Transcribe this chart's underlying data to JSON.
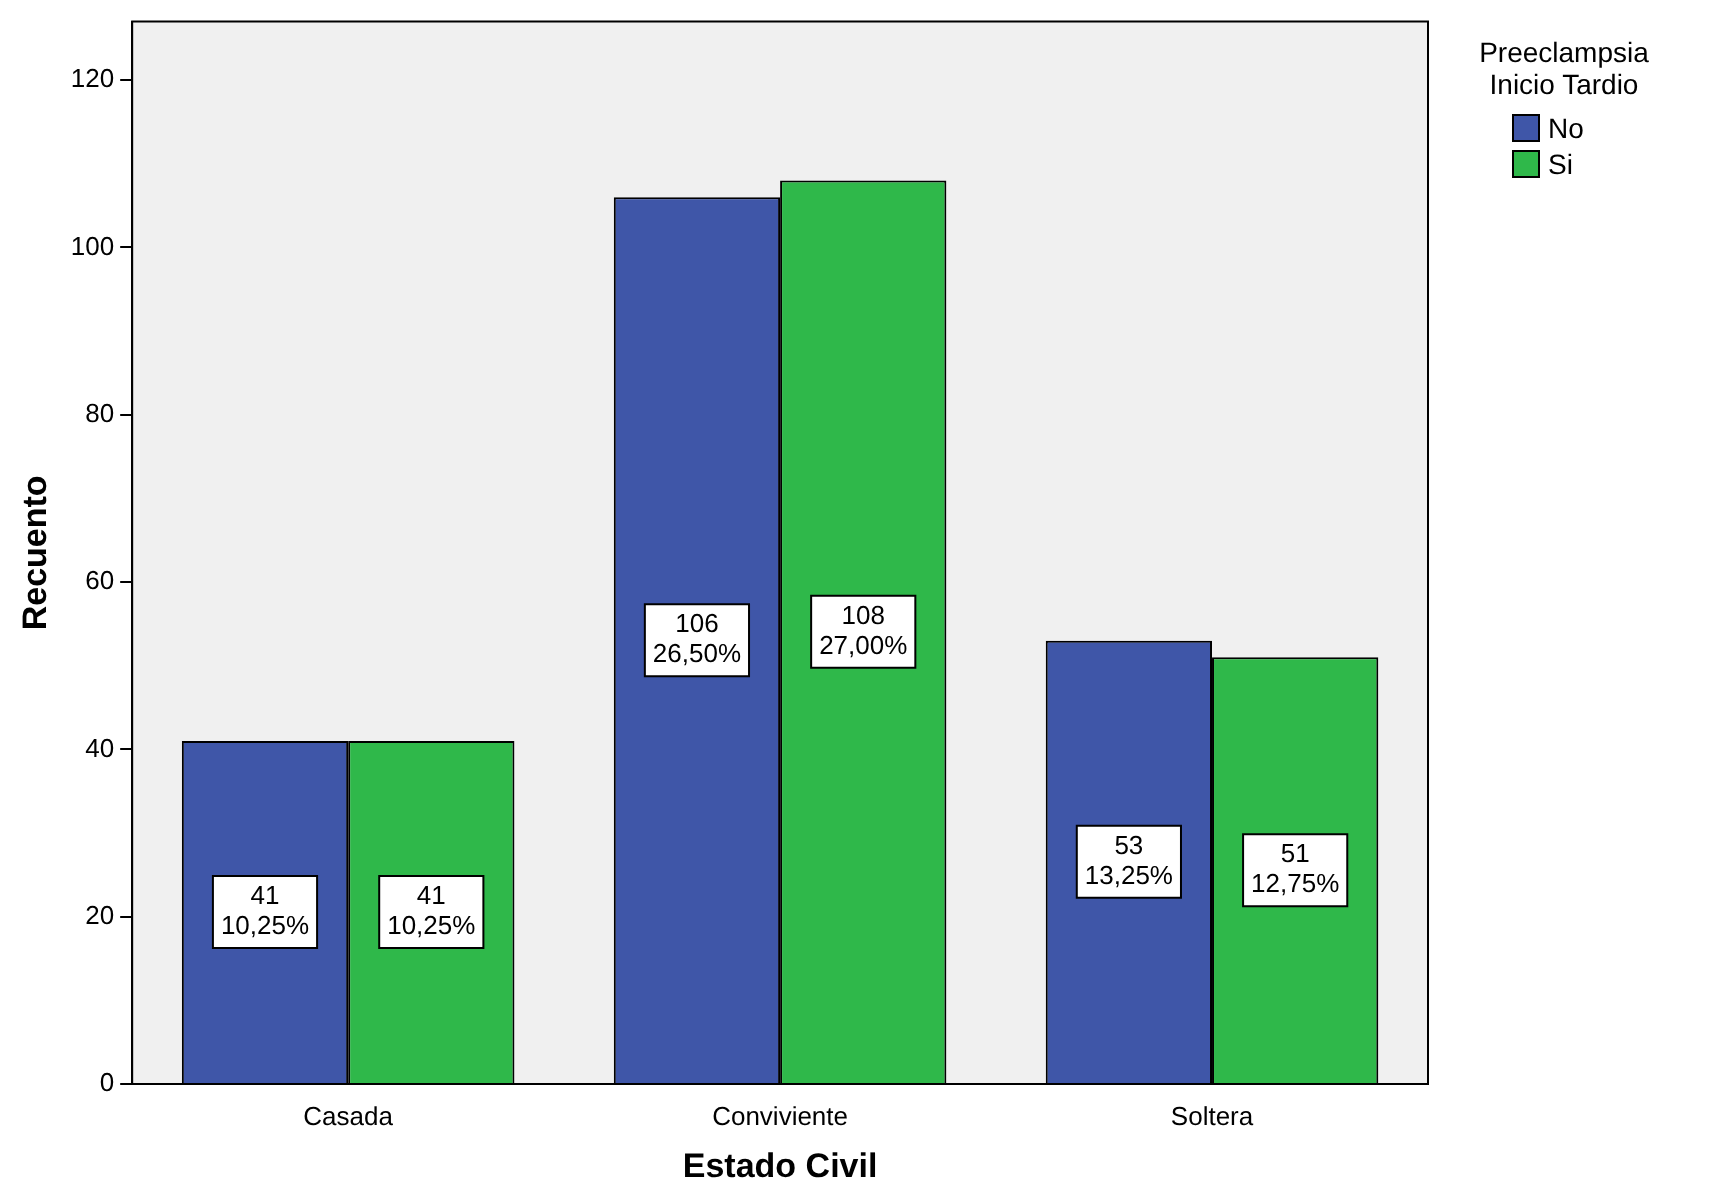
{
  "chart_data": {
    "type": "bar",
    "xlabel": "Estado Civil",
    "ylabel": "Recuento",
    "legend_title": "Preeclampsia Inicio Tardio",
    "categories": [
      "Casada",
      "Conviviente",
      "Soltera"
    ],
    "series": [
      {
        "name": "No",
        "color": "#3f56a8",
        "values": [
          41,
          106,
          53
        ],
        "value_labels": [
          "41\n10,25%",
          "106\n26,50%",
          "53\n13,25%"
        ]
      },
      {
        "name": "Si",
        "color": "#2fb84a",
        "values": [
          41,
          108,
          51
        ],
        "value_labels": [
          "41\n10,25%",
          "108\n27,00%",
          "51\n12,75%"
        ]
      }
    ],
    "ylim": [
      0,
      127
    ],
    "yticks": [
      0,
      20,
      40,
      60,
      80,
      100,
      120
    ],
    "grid": false,
    "legend": "top right"
  }
}
